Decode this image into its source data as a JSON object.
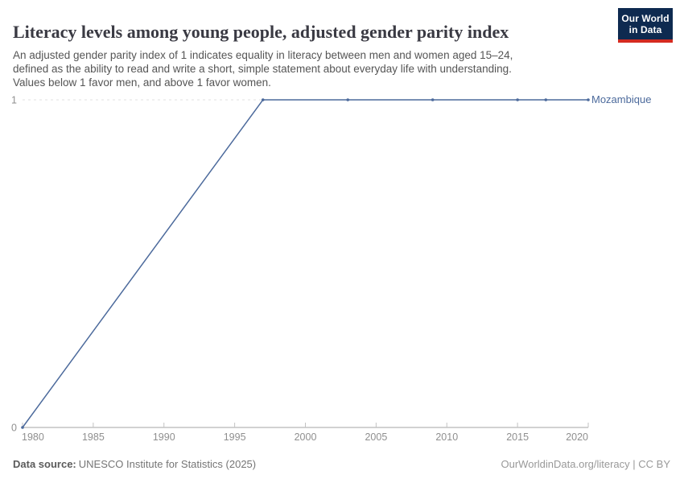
{
  "header": {
    "title": "Literacy levels among young people, adjusted gender parity index",
    "subtitle": "An adjusted gender parity index of 1 indicates equality in literacy between men and women aged 15–24,\ndefined as the ability to read and write a short, simple statement about everyday life with understanding.\nValues below 1 favor men, and above 1 favor women."
  },
  "logo": {
    "line1": "Our World",
    "line2": "in Data",
    "bg_color": "#0e2a50",
    "accent_color": "#d42b21"
  },
  "chart_data": {
    "type": "line",
    "title": "Literacy levels among young people, adjusted gender parity index",
    "xlabel": "",
    "ylabel": "",
    "xlim": [
      1980,
      2020
    ],
    "ylim": [
      0,
      1
    ],
    "xticks": [
      1980,
      1985,
      1990,
      1995,
      2000,
      2005,
      2010,
      2015,
      2020
    ],
    "yticks": [
      0,
      1
    ],
    "grid": "horizontal dashed gridline at y=1 only; solid x-axis at y=0; no vertical axis line",
    "legend_position": "entity label at right end of line",
    "series": [
      {
        "name": "Mozambique",
        "color": "#4c6a9c",
        "points": [
          {
            "x": 1980,
            "y": 0
          },
          {
            "x": 1997,
            "y": 1
          },
          {
            "x": 2003,
            "y": 1
          },
          {
            "x": 2009,
            "y": 1
          },
          {
            "x": 2015,
            "y": 1
          },
          {
            "x": 2017,
            "y": 1
          },
          {
            "x": 2020,
            "y": 1
          }
        ]
      }
    ],
    "colors": {
      "gridline": "#e0e0e0",
      "axis": "#a6a6a6",
      "tick_mark": "#c2c2c2",
      "tick_label": "#8f8f8f"
    }
  },
  "footer": {
    "source_label": "Data source:",
    "source_value": "UNESCO Institute for Statistics (2025)",
    "attribution": "OurWorldinData.org/literacy | CC BY"
  }
}
